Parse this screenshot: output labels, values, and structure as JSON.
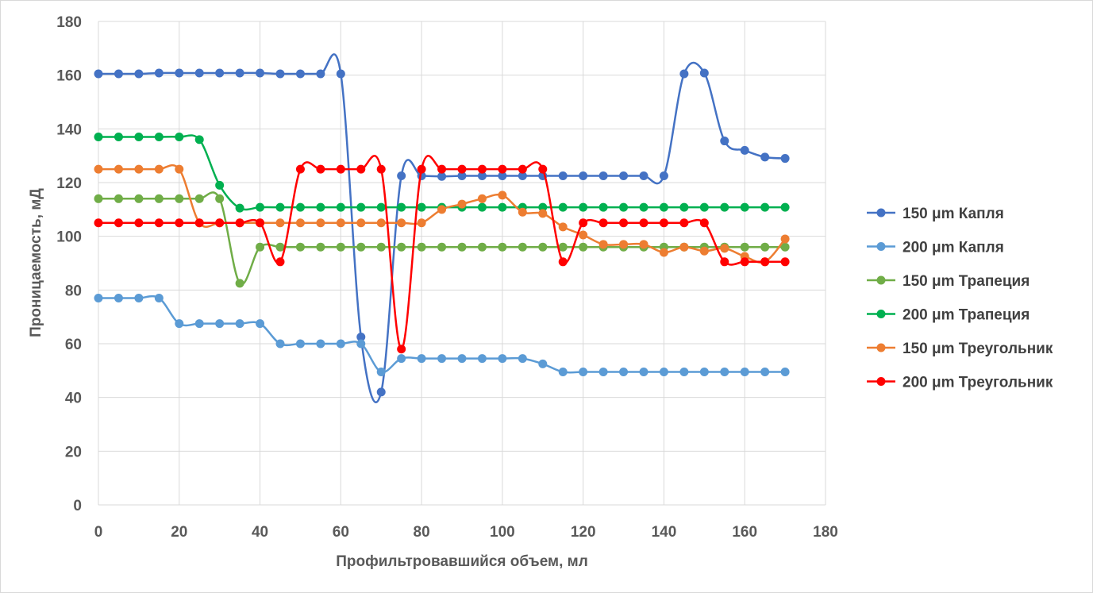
{
  "chart_data": {
    "type": "line",
    "title": "",
    "xlabel": "Профильтровавшийся объем, мл",
    "ylabel": "Проницаемость, мД",
    "xlim": [
      0,
      180
    ],
    "ylim": [
      0,
      180
    ],
    "x_ticks": [
      "0",
      "20",
      "40",
      "60",
      "80",
      "100",
      "120",
      "140",
      "160",
      "180"
    ],
    "y_ticks": [
      "0",
      "20",
      "40",
      "60",
      "80",
      "100",
      "120",
      "140",
      "160",
      "180"
    ],
    "grid": "vertical and horizontal",
    "legend_position": "right",
    "smoothed": true,
    "x": [
      0,
      5,
      10,
      15,
      20,
      25,
      30,
      35,
      40,
      45,
      50,
      55,
      60,
      65,
      70,
      75,
      80,
      85,
      90,
      95,
      100,
      105,
      110,
      115,
      120,
      125,
      130,
      135,
      140,
      145,
      150,
      155,
      160,
      165,
      170
    ],
    "series": [
      {
        "name": "150 μm Капля",
        "color": "#4472c4",
        "values": [
          160.5,
          160.5,
          160.5,
          160.8,
          160.8,
          160.8,
          160.8,
          160.8,
          160.8,
          160.5,
          160.5,
          160.5,
          160.5,
          62.5,
          42,
          122.5,
          122.5,
          122.3,
          122.5,
          122.5,
          122.5,
          122.5,
          122.5,
          122.5,
          122.5,
          122.5,
          122.5,
          122.5,
          122.5,
          160.5,
          160.8,
          135.5,
          132,
          129.5,
          129
        ]
      },
      {
        "name": "200 μm Капля",
        "color": "#5b9bd5",
        "values": [
          77,
          77,
          77,
          77,
          67.5,
          67.5,
          67.5,
          67.5,
          67.5,
          60,
          60,
          60,
          60,
          60,
          49.5,
          54.5,
          54.5,
          54.5,
          54.5,
          54.5,
          54.5,
          54.5,
          52.5,
          49.5,
          49.5,
          49.5,
          49.5,
          49.5,
          49.5,
          49.5,
          49.5,
          49.5,
          49.5,
          49.5,
          49.5
        ]
      },
      {
        "name": "150 μm Трапеция",
        "color": "#70ad47",
        "values": [
          114,
          114,
          114,
          114,
          114,
          114,
          114,
          82.5,
          96,
          96,
          96,
          96,
          96,
          96,
          96,
          96,
          96,
          96,
          96,
          96,
          96,
          96,
          96,
          96,
          96,
          96,
          96,
          96,
          96,
          96,
          96,
          96,
          96,
          96,
          96
        ]
      },
      {
        "name": "200 μm Трапеция",
        "color": "#00b050",
        "values": [
          137,
          137,
          137,
          137,
          137,
          136,
          119,
          110.5,
          110.8,
          110.8,
          110.8,
          110.8,
          110.8,
          110.8,
          110.8,
          110.8,
          110.8,
          110.8,
          110.8,
          110.8,
          110.8,
          110.8,
          110.8,
          110.8,
          110.8,
          110.8,
          110.8,
          110.8,
          110.8,
          110.8,
          110.8,
          110.8,
          110.8,
          110.8,
          110.8
        ]
      },
      {
        "name": "150 μm Треугольник",
        "color": "#ed7d31",
        "values": [
          125,
          125,
          125,
          125,
          125,
          105,
          105,
          105,
          105,
          105,
          105,
          105,
          105,
          105,
          105,
          105,
          105,
          110,
          112,
          114,
          115.3,
          109,
          108.5,
          103.5,
          100.5,
          97,
          97,
          97,
          94,
          96,
          94.5,
          95.5,
          92.5,
          90.5,
          99
        ]
      },
      {
        "name": "200 μm Треугольник",
        "color": "#ff0000",
        "values": [
          105,
          105,
          105,
          105,
          105,
          105,
          105,
          105,
          105,
          90.5,
          125,
          125,
          125,
          125,
          125,
          58,
          125,
          125,
          125,
          125,
          125,
          125,
          125,
          90.5,
          105,
          105,
          105,
          105,
          105,
          105,
          105,
          90.5,
          90.5,
          90.5,
          90.5
        ]
      }
    ]
  }
}
